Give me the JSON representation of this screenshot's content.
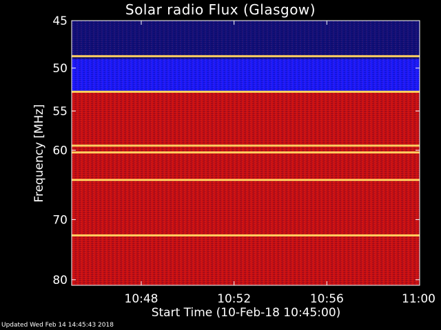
{
  "chart_data": {
    "type": "heatmap",
    "title": "Solar radio Flux (Glasgow)",
    "xlabel": "Start Time (10-Feb-18 10:45:00)",
    "ylabel": "Frequency [MHz]",
    "x_ticks": [
      "10:48",
      "10:52",
      "10:56",
      "11:00"
    ],
    "x_tick_minutes": [
      3,
      7,
      11,
      15
    ],
    "xlim_minutes": [
      0,
      15
    ],
    "y_ticks": [
      45,
      50,
      55,
      60,
      70,
      80
    ],
    "ylim": [
      45,
      81
    ],
    "y_scale": "log",
    "colormap": [
      "#000030",
      "#0000ff",
      "#ff0000",
      "#ffff80"
    ],
    "bands": [
      {
        "from": 45,
        "to": 49,
        "level": "blue-black",
        "color": "#10107a"
      },
      {
        "from": 49,
        "to": 52.6,
        "level": "blue",
        "color": "#1a1aff"
      },
      {
        "from": 52.6,
        "to": 81,
        "level": "red",
        "color": "#cc1010"
      }
    ],
    "bright_lines_mhz": [
      48.7,
      52.7,
      59.4,
      60.3,
      64.1,
      72.5
    ],
    "updated": "Updated Wed Feb 14 14:45:43 2018"
  }
}
